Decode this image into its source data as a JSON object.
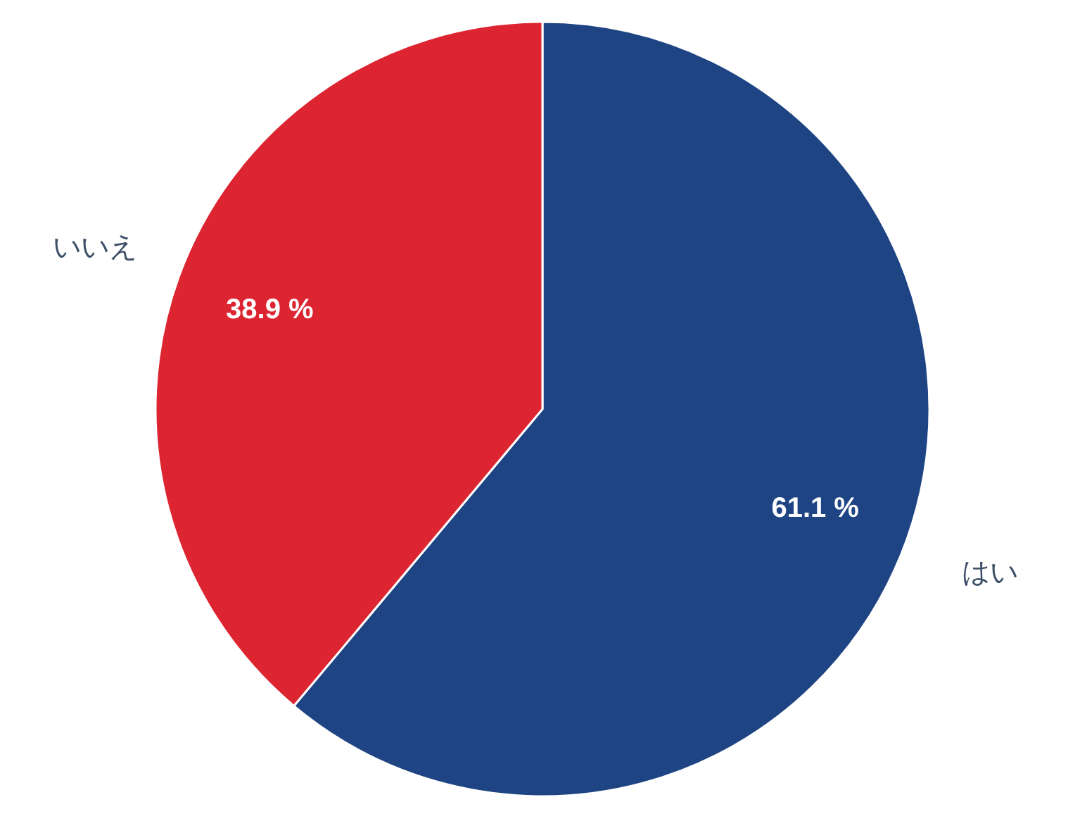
{
  "chart_data": {
    "type": "pie",
    "categories": [
      "はい",
      "いいえ"
    ],
    "values": [
      61.1,
      38.9
    ],
    "colors": [
      "#1e4484",
      "#dc2531"
    ],
    "value_labels": [
      "61.1 %",
      "38.9 %"
    ]
  }
}
